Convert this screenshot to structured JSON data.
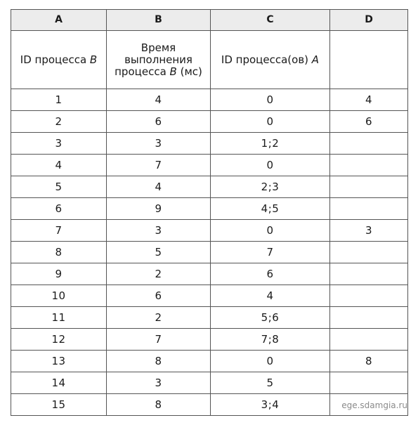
{
  "columns": [
    "A",
    "B",
    "C",
    "D"
  ],
  "headers": {
    "a_label": "ID процесса ",
    "a_var": "B",
    "b_line1": "Время",
    "b_line2": "выполнения",
    "b_line3": "процесса ",
    "b_var": "B",
    "b_unit": " (мс)",
    "c_label": "ID процесса(ов) ",
    "c_var": "A",
    "d_label": ""
  },
  "rows": [
    {
      "a": "1",
      "b": "4",
      "c": "0",
      "d": "4"
    },
    {
      "a": "2",
      "b": "6",
      "c": "0",
      "d": "6"
    },
    {
      "a": "3",
      "b": "3",
      "c": "1;2",
      "d": ""
    },
    {
      "a": "4",
      "b": "7",
      "c": "0",
      "d": ""
    },
    {
      "a": "5",
      "b": "4",
      "c": "2;3",
      "d": ""
    },
    {
      "a": "6",
      "b": "9",
      "c": "4;5",
      "d": ""
    },
    {
      "a": "7",
      "b": "3",
      "c": "0",
      "d": "3"
    },
    {
      "a": "8",
      "b": "5",
      "c": "7",
      "d": ""
    },
    {
      "a": "9",
      "b": "2",
      "c": "6",
      "d": ""
    },
    {
      "a": "10",
      "b": "6",
      "c": "4",
      "d": ""
    },
    {
      "a": "11",
      "b": "2",
      "c": "5;6",
      "d": ""
    },
    {
      "a": "12",
      "b": "7",
      "c": "7;8",
      "d": ""
    },
    {
      "a": "13",
      "b": "8",
      "c": "0",
      "d": "8"
    },
    {
      "a": "14",
      "b": "3",
      "c": "5",
      "d": ""
    },
    {
      "a": "15",
      "b": "8",
      "c": "3;4",
      "d": ""
    }
  ],
  "watermark": "ege.sdamgia.ru"
}
